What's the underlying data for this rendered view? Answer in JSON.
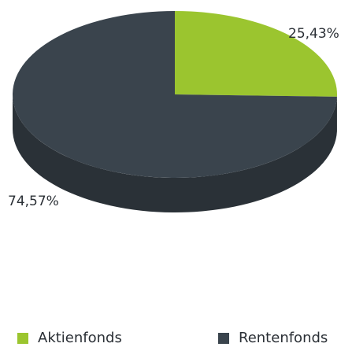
{
  "chart_data": {
    "type": "pie",
    "title": "",
    "series": [
      {
        "name": "Aktienfonds",
        "value": 25.43,
        "label": "25,43%",
        "color": "#9bc52f"
      },
      {
        "name": "Rentenfonds",
        "value": 74.57,
        "label": "74,57%",
        "color": "#3a444d"
      }
    ],
    "legend_position": "bottom",
    "style": "3d"
  },
  "legend": {
    "items": [
      {
        "label": "Aktienfonds",
        "color": "#9bc52f",
        "icon": "green-square-icon"
      },
      {
        "label": "Rentenfonds",
        "color": "#3a444d",
        "icon": "dark-square-icon"
      }
    ]
  }
}
